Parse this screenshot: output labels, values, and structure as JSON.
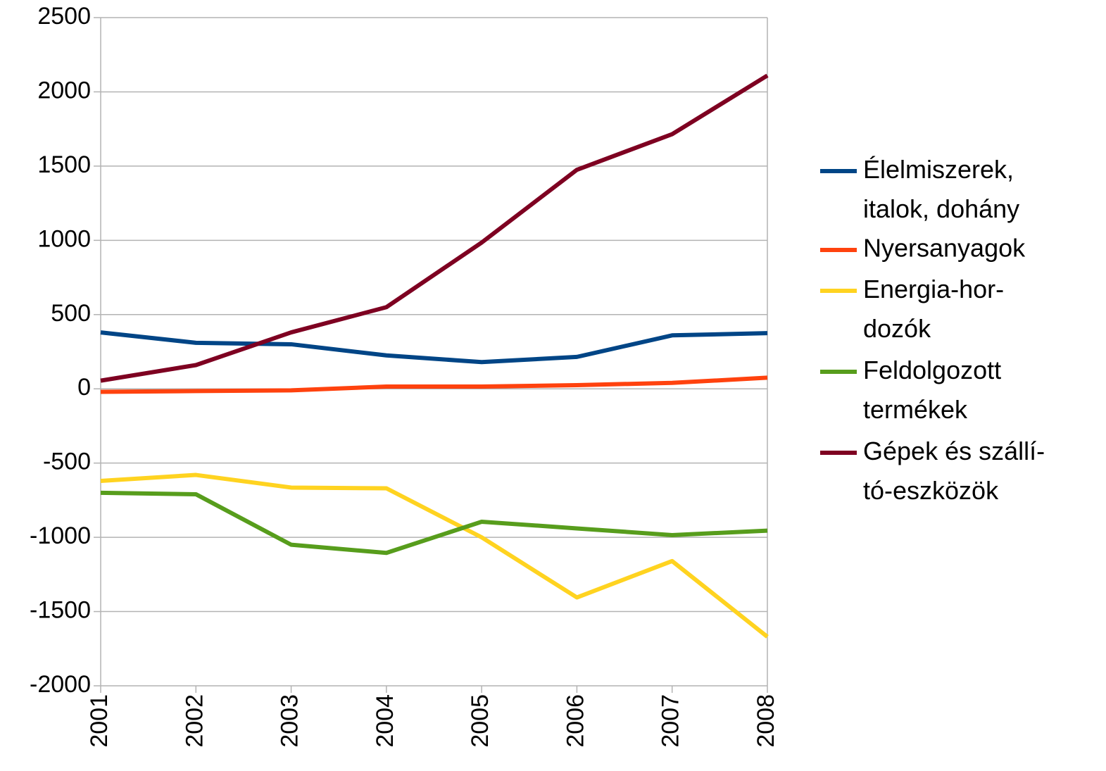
{
  "chart_data": {
    "type": "line",
    "categories": [
      "2001",
      "2002",
      "2003",
      "2004",
      "2005",
      "2006",
      "2007",
      "2008"
    ],
    "series": [
      {
        "name": "Élelmiszerek,\nitalok, dohány",
        "color": "#004586",
        "values": [
          380,
          310,
          300,
          225,
          180,
          215,
          360,
          375
        ]
      },
      {
        "name": "Nyersanyagok",
        "color": "#ff420e",
        "values": [
          -20,
          -15,
          -10,
          15,
          15,
          25,
          40,
          75
        ]
      },
      {
        "name": "Energia-hor-\ndozók",
        "color": "#ffd320",
        "values": [
          -620,
          -580,
          -665,
          -670,
          -1000,
          -1405,
          -1160,
          -1670
        ]
      },
      {
        "name": "Feldolgozott\ntermékek",
        "color": "#579d1c",
        "values": [
          -700,
          -710,
          -1050,
          -1105,
          -895,
          -940,
          -985,
          -955
        ]
      },
      {
        "name": "Gépek és szállí-\ntó-eszközök",
        "color": "#7e0021",
        "values": [
          55,
          160,
          380,
          550,
          985,
          1475,
          1715,
          2110
        ]
      }
    ],
    "ylim": [
      -2000,
      2500
    ],
    "yticks": [
      -2000,
      -1500,
      -1000,
      -500,
      0,
      500,
      1000,
      1500,
      2000,
      2500
    ],
    "grid": true,
    "legend": "right"
  }
}
